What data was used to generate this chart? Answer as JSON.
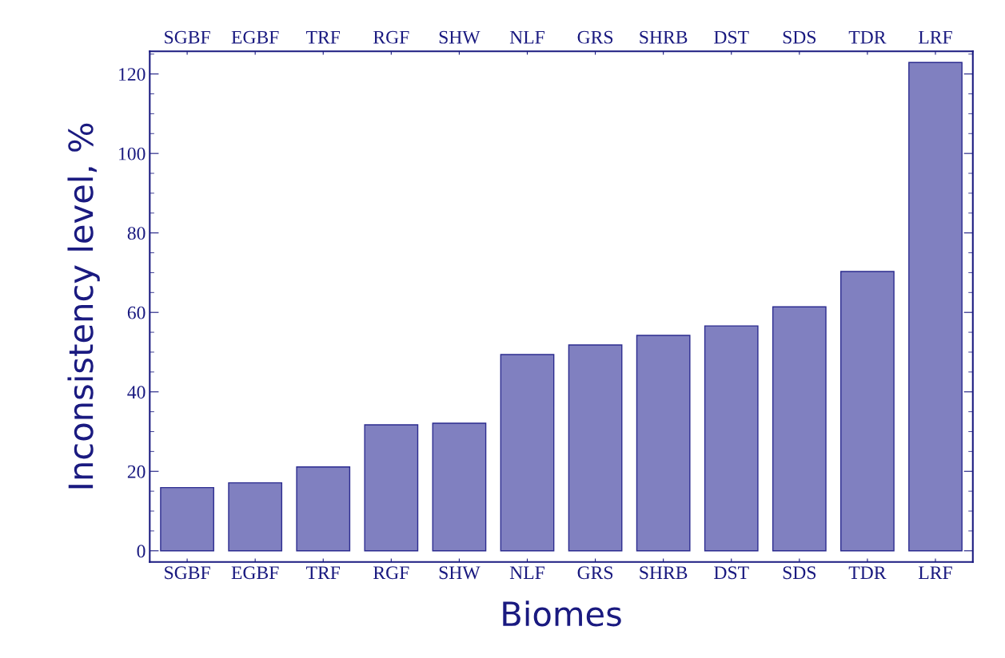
{
  "chart_data": {
    "type": "bar",
    "xlabel": "Biomes",
    "ylabel": "Inconsistency level, %",
    "categories": [
      "SGBF",
      "EGBF",
      "TRF",
      "RGF",
      "SHW",
      "NLF",
      "GRS",
      "SHRB",
      "DST",
      "SDS",
      "TDR",
      "LRF"
    ],
    "values": [
      15.9,
      17.1,
      21.1,
      31.7,
      32.1,
      49.4,
      51.8,
      54.2,
      56.6,
      61.4,
      70.3,
      122.9
    ],
    "color": "#8080c0",
    "ylim": [
      -2.8,
      125.7
    ],
    "yticks": [
      0,
      20,
      40,
      60,
      80,
      100,
      120
    ],
    "grid": false
  }
}
